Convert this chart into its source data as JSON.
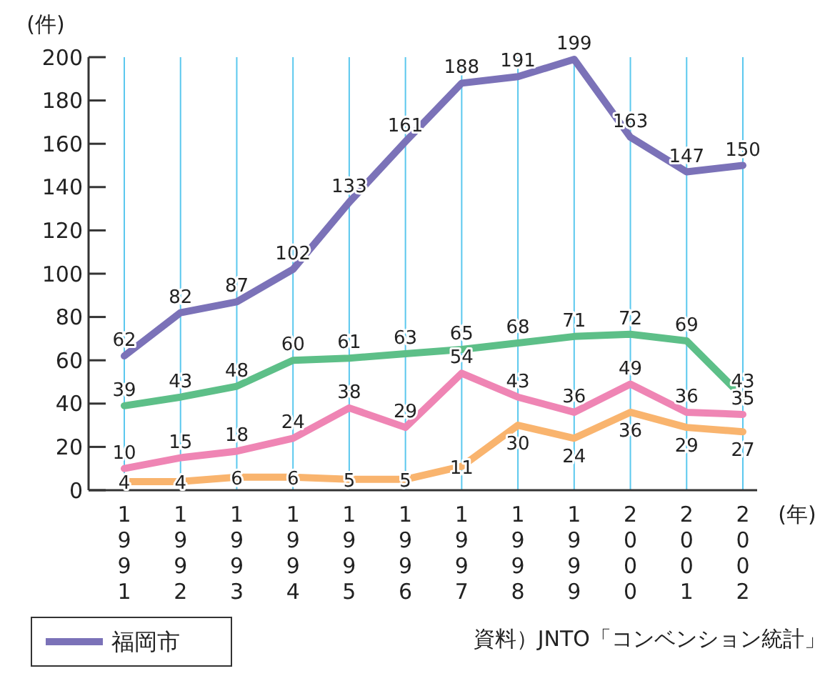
{
  "chart_data": {
    "type": "line",
    "ylabel": "(件)",
    "xlabel": "(年)",
    "categories": [
      "1991",
      "1992",
      "1993",
      "1994",
      "1995",
      "1996",
      "1997",
      "1998",
      "1999",
      "2000",
      "2001",
      "2002"
    ],
    "series": [
      {
        "name": "福岡市",
        "color": "#7b72b8",
        "values": [
          62,
          82,
          87,
          102,
          133,
          161,
          188,
          191,
          199,
          163,
          147,
          150
        ]
      },
      {
        "color": "#5dbf88",
        "values": [
          39,
          43,
          48,
          60,
          61,
          63,
          65,
          68,
          71,
          72,
          69,
          43
        ]
      },
      {
        "color": "#ef85b4",
        "values": [
          10,
          15,
          18,
          24,
          38,
          29,
          54,
          43,
          36,
          49,
          36,
          35
        ]
      },
      {
        "color": "#f9b46e",
        "values": [
          4,
          4,
          6,
          6,
          5,
          5,
          11,
          30,
          24,
          36,
          29,
          27
        ]
      }
    ],
    "ylim": [
      0,
      200
    ],
    "yticks": [
      0,
      20,
      40,
      60,
      80,
      100,
      120,
      140,
      160,
      180,
      200
    ],
    "grid": "x",
    "legend": "bottom left",
    "data_labels": true,
    "marker": "none",
    "line_style": "solid",
    "annotations": [
      "資料）JNTO「コンベンション統計」"
    ]
  }
}
